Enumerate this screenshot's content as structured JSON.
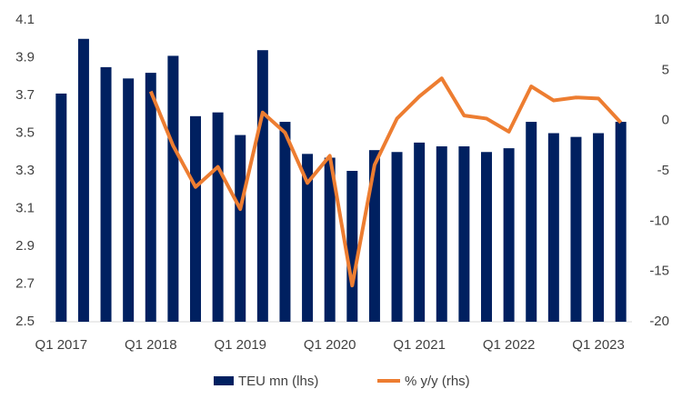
{
  "chart_data": {
    "type": "bar_line",
    "categories": [
      "Q1 2017",
      null,
      null,
      null,
      "Q1 2018",
      null,
      null,
      null,
      "Q1 2019",
      null,
      null,
      null,
      "Q1 2020",
      null,
      null,
      null,
      "Q1 2021",
      null,
      null,
      null,
      "Q1 2022",
      null,
      null,
      null,
      "Q1 2023",
      null
    ],
    "series": [
      {
        "name": "TEU mn (lhs)",
        "color": "#002060",
        "type": "bar",
        "axis": "y",
        "values": [
          3.71,
          4.0,
          3.85,
          3.79,
          3.82,
          3.91,
          3.59,
          3.61,
          3.49,
          3.94,
          3.56,
          3.39,
          3.37,
          3.3,
          3.41,
          3.4,
          3.45,
          3.43,
          3.43,
          3.4,
          3.42,
          3.56,
          3.5,
          3.48,
          3.5,
          3.56
        ]
      },
      {
        "name": "% y/y (rhs)",
        "color": "#ED7D31",
        "type": "line",
        "axis": "y2",
        "values": [
          null,
          null,
          null,
          null,
          2.9,
          -2.5,
          -6.6,
          -4.6,
          -8.8,
          0.8,
          -1.2,
          -6.2,
          -3.5,
          -16.4,
          -4.4,
          0.2,
          2.4,
          4.2,
          0.5,
          0.2,
          -1.1,
          3.4,
          2.0,
          2.3,
          2.2,
          -0.2
        ]
      }
    ],
    "ylim": [
      2.5,
      4.1
    ],
    "yticks": [
      2.5,
      2.7,
      2.9,
      3.1,
      3.3,
      3.5,
      3.7,
      3.9,
      4.1
    ],
    "y2lim": [
      -20,
      10
    ],
    "y2ticks": [
      -20,
      -15,
      -10,
      -5,
      0,
      5,
      10
    ],
    "grid": false,
    "legend": "bottom"
  }
}
